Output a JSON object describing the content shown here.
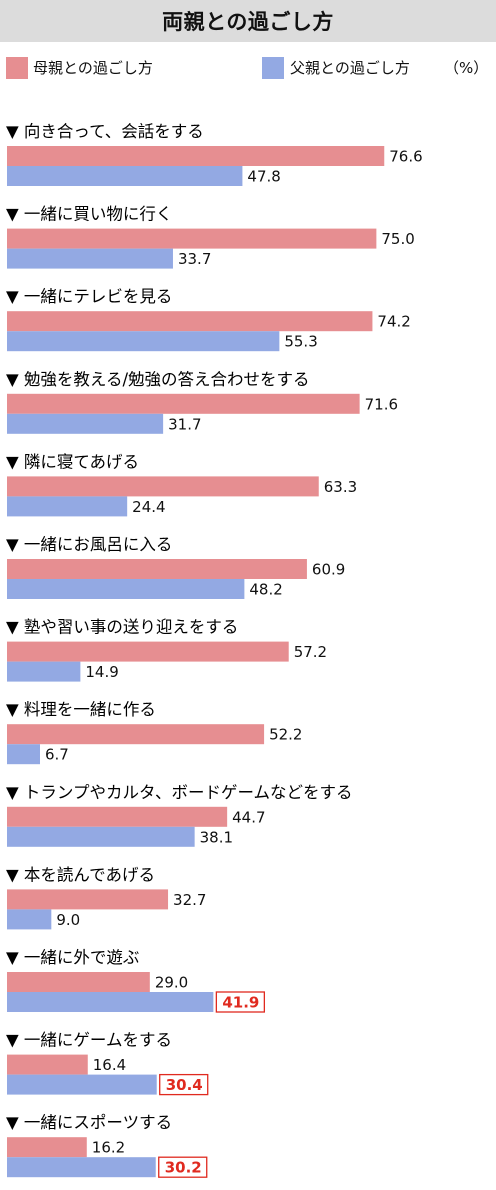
{
  "title": "両親との過ごし方",
  "legend": {
    "mother_label": "母親との過ごし方",
    "father_label": "父親との過ごし方",
    "unit": "（%）"
  },
  "colors": {
    "mother": "#e68e91",
    "father": "#93a9e3",
    "highlight": "#e02a1f",
    "title_bg": "#dcdcdc"
  },
  "chart_data": {
    "type": "bar",
    "orientation": "horizontal",
    "title": "両親との過ごし方",
    "unit": "%",
    "xlim": [
      0,
      100
    ],
    "grid": false,
    "legend_position": "top",
    "categories": [
      "向き合って、会話をする",
      "一緒に買い物に行く",
      "一緒にテレビを見る",
      "勉強を教える/勉強の答え合わせをする",
      "隣に寝てあげる",
      "一緒にお風呂に入る",
      "塾や習い事の送り迎えをする",
      "料理を一緒に作る",
      "トランプやカルタ、ボードゲームなどをする",
      "本を読んであげる",
      "一緒に外で遊ぶ",
      "一緒にゲームをする",
      "一緒にスポーツする"
    ],
    "series": [
      {
        "name": "母親との過ごし方",
        "values": [
          76.6,
          75.0,
          74.2,
          71.6,
          63.3,
          60.9,
          57.2,
          52.2,
          44.7,
          32.7,
          29.0,
          16.4,
          16.2
        ],
        "labels": [
          "76.6",
          "75.0",
          "74.2",
          "71.6",
          "63.3",
          "60.9",
          "57.2",
          "52.2",
          "44.7",
          "32.7",
          "29.0",
          "16.4",
          "16.2"
        ]
      },
      {
        "name": "父親との過ごし方",
        "values": [
          47.8,
          33.7,
          55.3,
          31.7,
          24.4,
          48.2,
          14.9,
          6.7,
          38.1,
          9.0,
          41.9,
          30.4,
          30.2
        ],
        "labels": [
          "47.8",
          "33.7",
          "55.3",
          "31.7",
          "24.4",
          "48.2",
          "14.9",
          "6.7",
          "38.1",
          "9.0",
          "41.9",
          "30.4",
          "30.2"
        ]
      }
    ],
    "highlighted_father_indices": [
      10,
      11,
      12
    ]
  }
}
